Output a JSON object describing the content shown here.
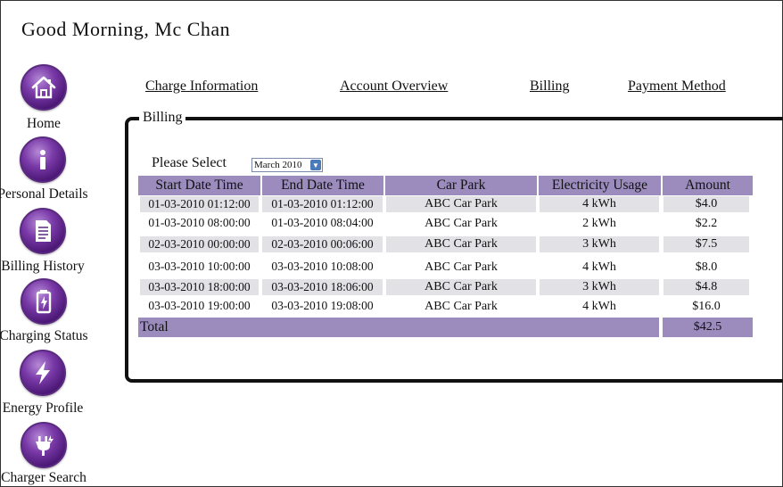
{
  "greeting": "Good Morning, Mc Chan",
  "sidebar": {
    "items": [
      {
        "label": "Home",
        "icon": "home-icon"
      },
      {
        "label": "Personal Details",
        "icon": "info-icon"
      },
      {
        "label": "Billing History",
        "icon": "document-icon"
      },
      {
        "label": "Charging Status",
        "icon": "battery-icon"
      },
      {
        "label": "Energy Profile",
        "icon": "lightning-icon"
      },
      {
        "label": "Charger Search",
        "icon": "plug-icon"
      }
    ]
  },
  "topnav": [
    "Charge Information",
    "Account Overview",
    "Billing",
    "Payment Method"
  ],
  "panel": {
    "title": "Billing",
    "select_label": "Please Select",
    "selected_month": "March 2010"
  },
  "table": {
    "headers": [
      "Start Date Time",
      "End Date Time",
      "Car Park",
      "Electricity Usage",
      "Amount"
    ],
    "rows": [
      [
        "01-03-2010 01:12:00",
        "01-03-2010 01:12:00",
        "ABC Car Park",
        "4 kWh",
        "$4.0"
      ],
      [
        "01-03-2010 08:00:00",
        "01-03-2010 08:04:00",
        "ABC Car Park",
        "2 kWh",
        "$2.2"
      ],
      [
        "02-03-2010 00:00:00",
        "02-03-2010 00:06:00",
        "ABC Car Park",
        "3 kWh",
        "$7.5"
      ],
      [
        "03-03-2010 10:00:00",
        "03-03-2010 10:08:00",
        "ABC Car Park",
        "4 kWh",
        "$8.0"
      ],
      [
        "03-03-2010 18:00:00",
        "03-03-2010 18:06:00",
        "ABC Car Park",
        "3 kWh",
        "$4.8"
      ],
      [
        "03-03-2010 19:00:00",
        "03-03-2010 19:08:00",
        "ABC Car Park",
        "4 kWh",
        "$16.0"
      ]
    ],
    "total_label": "Total",
    "total_amount": "$42.5"
  },
  "colors": {
    "header_bg": "#9b8cbd",
    "row_shade": "#e1e1e6",
    "icon_purple": "#6a2c96"
  }
}
